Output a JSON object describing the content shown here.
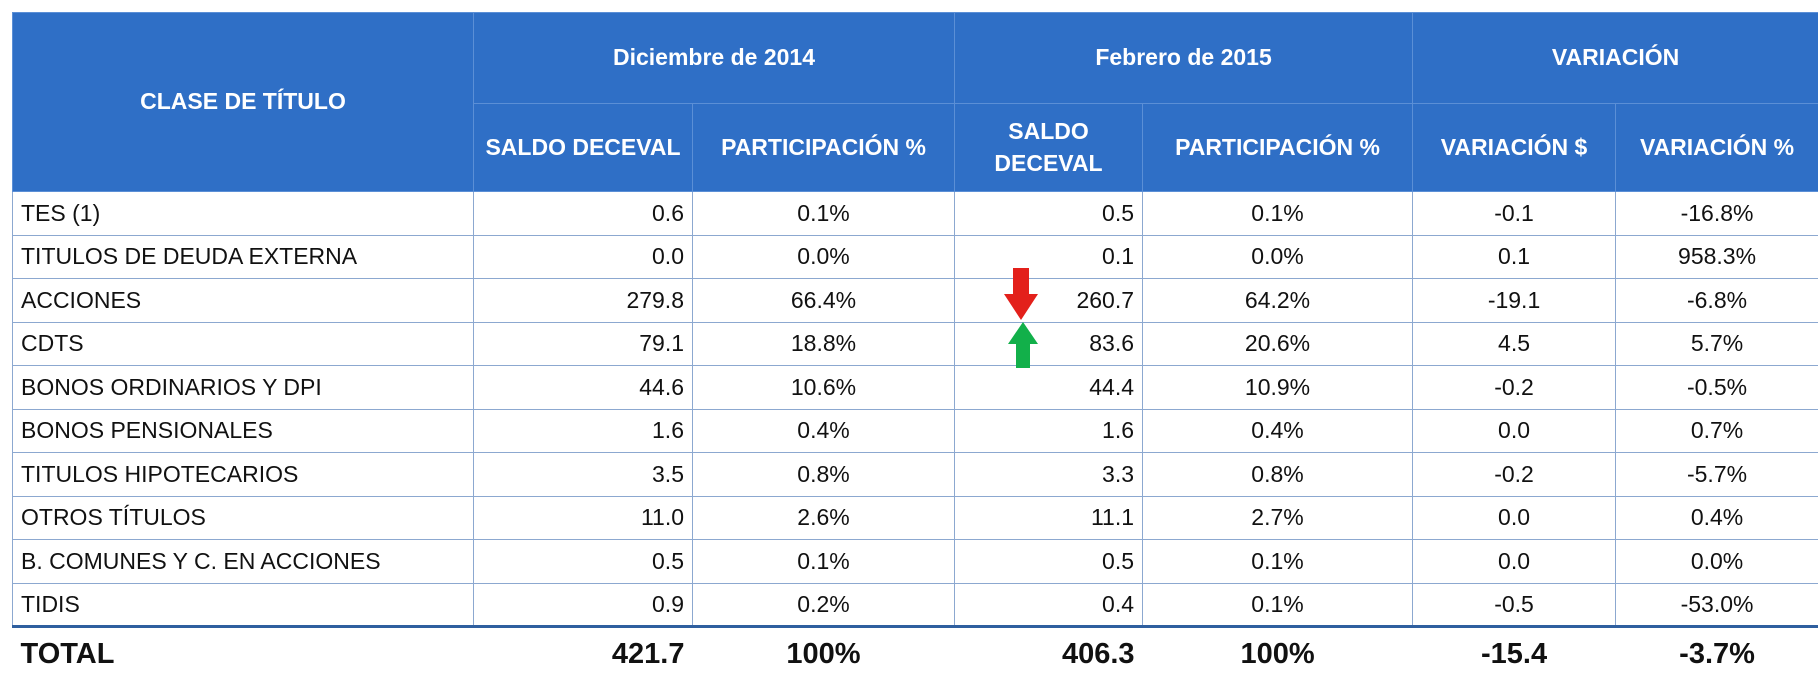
{
  "table": {
    "header": {
      "first": "CLASE DE TÍTULO",
      "groups": [
        "Diciembre de 2014",
        "Febrero de 2015",
        "VARIACIÓN"
      ],
      "sub": [
        "SALDO DECEVAL",
        "PARTICIPACIÓN %",
        "SALDO DECEVAL",
        "PARTICIPACIÓN %",
        "VARIACIÓN $",
        "VARIACIÓN %"
      ]
    },
    "rows": [
      [
        "TES (1)",
        "0.6",
        "0.1%",
        "0.5",
        "0.1%",
        "-0.1",
        "-16.8%"
      ],
      [
        "TITULOS DE DEUDA EXTERNA",
        "0.0",
        "0.0%",
        "0.1",
        "0.0%",
        "0.1",
        "958.3%"
      ],
      [
        "ACCIONES",
        "279.8",
        "66.4%",
        "260.7",
        "64.2%",
        "-19.1",
        "-6.8%"
      ],
      [
        "CDTS",
        "79.1",
        "18.8%",
        "83.6",
        "20.6%",
        "4.5",
        "5.7%"
      ],
      [
        "BONOS ORDINARIOS Y DPI",
        "44.6",
        "10.6%",
        "44.4",
        "10.9%",
        "-0.2",
        "-0.5%"
      ],
      [
        "BONOS PENSIONALES",
        "1.6",
        "0.4%",
        "1.6",
        "0.4%",
        "0.0",
        "0.7%"
      ],
      [
        "TITULOS HIPOTECARIOS",
        "3.5",
        "0.8%",
        "3.3",
        "0.8%",
        "-0.2",
        "-5.7%"
      ],
      [
        "OTROS TÍTULOS",
        "11.0",
        "2.6%",
        "11.1",
        "2.7%",
        "0.0",
        "0.4%"
      ],
      [
        "B. COMUNES Y C. EN ACCIONES",
        "0.5",
        "0.1%",
        "0.5",
        "0.1%",
        "0.0",
        "0.0%"
      ],
      [
        "TIDIS",
        "0.9",
        "0.2%",
        "0.4",
        "0.1%",
        "-0.5",
        "-53.0%"
      ]
    ],
    "total": [
      "TOTAL",
      "421.7",
      "100%",
      "406.3",
      "100%",
      "-15.4",
      "-3.7%"
    ]
  }
}
